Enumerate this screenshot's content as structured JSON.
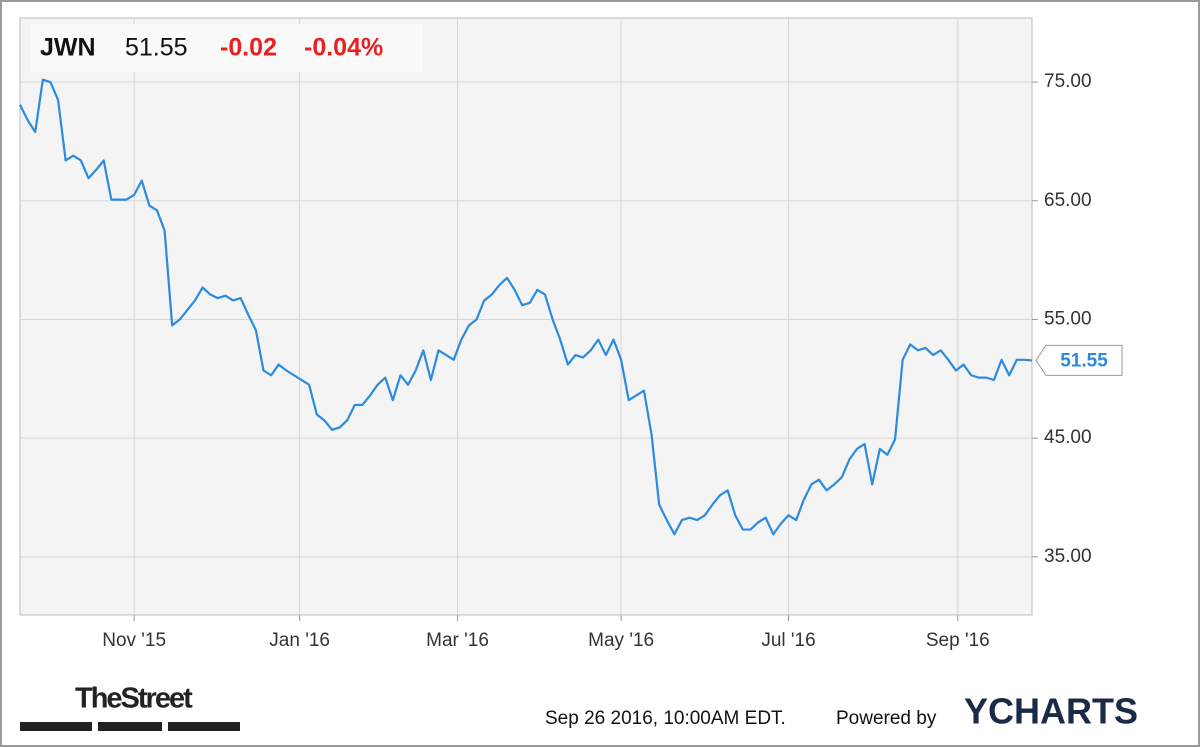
{
  "chart_data": {
    "type": "line",
    "header": {
      "ticker": "JWN",
      "price": "51.55",
      "change": "-0.02",
      "change_pct": "-0.04%"
    },
    "series": [
      {
        "name": "JWN",
        "color": "#2b8be0",
        "values": [
          73.1,
          71.8,
          70.8,
          75.2,
          75,
          73.5,
          68.4,
          68.8,
          68.4,
          66.9,
          67.6,
          68.4,
          65.1,
          65.1,
          65.1,
          65.5,
          66.7,
          64.6,
          64.2,
          62.5,
          54.5,
          55,
          55.8,
          56.6,
          57.7,
          57.1,
          56.8,
          57,
          56.6,
          56.8,
          55.4,
          54.1,
          50.7,
          50.3,
          51.2,
          50.7,
          50.3,
          49.9,
          49.5,
          47,
          46.5,
          45.7,
          45.9,
          46.5,
          47.8,
          47.8,
          48.6,
          49.5,
          50.1,
          48.2,
          50.3,
          49.5,
          50.7,
          52.4,
          49.9,
          52.4,
          52,
          51.6,
          53.3,
          54.5,
          55,
          56.6,
          57.1,
          57.9,
          58.5,
          57.5,
          56.2,
          56.4,
          57.5,
          57.1,
          55,
          53.3,
          51.2,
          52,
          51.8,
          52.4,
          53.3,
          52,
          53.3,
          51.6,
          48.2,
          48.6,
          49,
          45.3,
          39.4,
          38.1,
          36.9,
          38.1,
          38.3,
          38.1,
          38.5,
          39.4,
          40.2,
          40.6,
          38.5,
          37.3,
          37.3,
          37.9,
          38.3,
          36.9,
          37.8,
          38.5,
          38.1,
          39.8,
          41.1,
          41.5,
          40.6,
          41.1,
          41.7,
          43.2,
          44.1,
          44.5,
          41.1,
          44.1,
          43.6,
          44.9,
          51.6,
          52.9,
          52.4,
          52.6,
          52,
          52.4,
          51.6,
          50.7,
          51.2,
          50.3,
          50.1,
          50.1,
          49.9,
          51.6,
          50.3,
          51.6,
          51.6,
          51.55
        ]
      }
    ],
    "xlim": [
      0,
      133
    ],
    "xticks": [
      {
        "value": 15,
        "label": "Nov '15"
      },
      {
        "value": 36.75,
        "label": "Jan '16"
      },
      {
        "value": 57.5,
        "label": "Mar '16"
      },
      {
        "value": 79,
        "label": "May '16"
      },
      {
        "value": 101,
        "label": "Jul '16"
      },
      {
        "value": 123.25,
        "label": "Sep '16"
      }
    ],
    "ylim": [
      30.1,
      80.4
    ],
    "yticks": [
      {
        "value": 35,
        "label": "35.00"
      },
      {
        "value": 45,
        "label": "45.00"
      },
      {
        "value": 55,
        "label": "55.00"
      },
      {
        "value": 65,
        "label": "65.00"
      },
      {
        "value": 75,
        "label": "75.00"
      }
    ],
    "grid": true,
    "footer": {
      "brand_left": "TheStreet",
      "timestamp": "Sep 26 2016, 10:00AM EDT.",
      "powered": "Powered by",
      "brand_right": "YCHARTS"
    }
  }
}
